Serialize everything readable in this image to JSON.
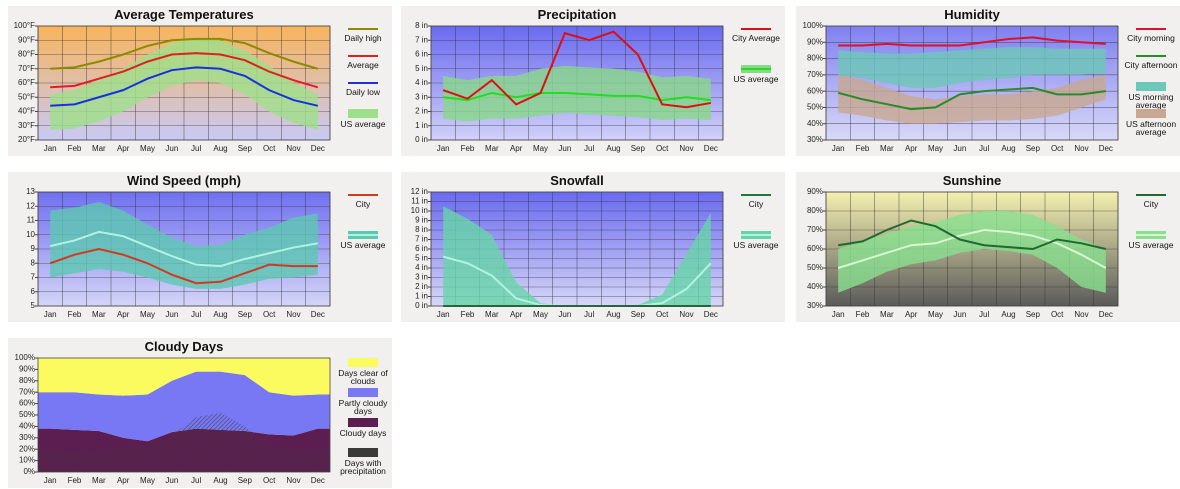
{
  "chart_data": [
    {
      "type": "line",
      "title": "Average Temperatures",
      "categories": [
        "Jan",
        "Feb",
        "Mar",
        "Apr",
        "May",
        "Jun",
        "Jul",
        "Aug",
        "Sep",
        "Oct",
        "Nov",
        "Dec"
      ],
      "ylim": [
        20,
        100
      ],
      "yticks": [
        {
          "value": 20,
          "label": "20°F"
        },
        {
          "value": 30,
          "label": "30°F"
        },
        {
          "value": 40,
          "label": "40°F"
        },
        {
          "value": 50,
          "label": "50°F"
        },
        {
          "value": 60,
          "label": "60°F"
        },
        {
          "value": 70,
          "label": "70°F"
        },
        {
          "value": 80,
          "label": "80°F"
        },
        {
          "value": 90,
          "label": "90°F"
        },
        {
          "value": 100,
          "label": "100°F"
        }
      ],
      "grid": true,
      "background": [
        "#f8b45c",
        "#c9c9f5"
      ],
      "series": [
        {
          "name": "Daily high",
          "color": "#8b8b00",
          "values": [
            70,
            71,
            75,
            80,
            86,
            90,
            91,
            91,
            88,
            81,
            75,
            70
          ]
        },
        {
          "name": "Average",
          "color": "#e02020",
          "values": [
            57,
            58,
            63,
            68,
            75,
            80,
            81,
            80,
            76,
            68,
            62,
            57
          ]
        },
        {
          "name": "Daily low",
          "color": "#1a30e0",
          "values": [
            44,
            45,
            50,
            55,
            63,
            69,
            71,
            70,
            65,
            55,
            48,
            44
          ]
        },
        {
          "name": "US average",
          "color": "#9de08a",
          "lower": [
            27,
            28,
            33,
            40,
            50,
            58,
            62,
            60,
            52,
            40,
            32,
            27
          ],
          "upper": [
            52,
            55,
            62,
            70,
            80,
            88,
            92,
            90,
            83,
            72,
            60,
            52
          ]
        }
      ]
    },
    {
      "type": "line",
      "title": "Precipitation",
      "categories": [
        "Jan",
        "Feb",
        "Mar",
        "Apr",
        "May",
        "Jun",
        "Jul",
        "Aug",
        "Sep",
        "Oct",
        "Nov",
        "Dec"
      ],
      "ylim": [
        0,
        8
      ],
      "yticks": [
        {
          "value": 0,
          "label": "0 in"
        },
        {
          "value": 1,
          "label": "1 in"
        },
        {
          "value": 2,
          "label": "2 in"
        },
        {
          "value": 3,
          "label": "3 in"
        },
        {
          "value": 4,
          "label": "4 in"
        },
        {
          "value": 5,
          "label": "5 in"
        },
        {
          "value": 6,
          "label": "6 in"
        },
        {
          "value": 7,
          "label": "7 in"
        },
        {
          "value": 8,
          "label": "8 in"
        }
      ],
      "grid": true,
      "background": [
        "#6a6af0",
        "#d0d0f8"
      ],
      "series": [
        {
          "name": "US average",
          "color": "#88d888",
          "lower": [
            1.5,
            1.3,
            1.5,
            1.5,
            1.7,
            1.9,
            1.8,
            1.7,
            1.6,
            1.4,
            1.5,
            1.4
          ],
          "upper": [
            4.5,
            4.2,
            4.5,
            4.5,
            5.0,
            5.2,
            5.1,
            5.0,
            4.8,
            4.4,
            4.5,
            4.3
          ],
          "values": [
            3.0,
            2.8,
            3.3,
            3.0,
            3.3,
            3.3,
            3.2,
            3.1,
            3.1,
            2.8,
            3.0,
            2.8
          ],
          "line_color": "#22dd22"
        },
        {
          "name": "City Average",
          "color": "#dd1010",
          "values": [
            3.5,
            2.9,
            4.2,
            2.5,
            3.3,
            7.5,
            7.0,
            7.6,
            6.0,
            2.5,
            2.3,
            2.6
          ]
        }
      ],
      "legend_order": [
        1,
        0
      ]
    },
    {
      "type": "line",
      "title": "Humidity",
      "categories": [
        "Jan",
        "Feb",
        "Mar",
        "Apr",
        "May",
        "Jun",
        "Jul",
        "Aug",
        "Sep",
        "Oct",
        "Nov",
        "Dec"
      ],
      "ylim": [
        30,
        100
      ],
      "yticks": [
        {
          "value": 30,
          "label": "30%"
        },
        {
          "value": 40,
          "label": "40%"
        },
        {
          "value": 50,
          "label": "50%"
        },
        {
          "value": 60,
          "label": "60%"
        },
        {
          "value": 70,
          "label": "70%"
        },
        {
          "value": 80,
          "label": "80%"
        },
        {
          "value": 90,
          "label": "90%"
        },
        {
          "value": 100,
          "label": "100%"
        }
      ],
      "grid": true,
      "background": [
        "#8080f0",
        "#d8d8f8"
      ],
      "series": [
        {
          "name": "City morning",
          "color": "#dd1030",
          "values": [
            88,
            88,
            89,
            88,
            88,
            88,
            90,
            92,
            93,
            91,
            90,
            89
          ]
        },
        {
          "name": "City afternoon",
          "color": "#2a8a2a",
          "values": [
            59,
            55,
            52,
            49,
            50,
            58,
            60,
            61,
            62,
            58,
            58,
            60
          ]
        },
        {
          "name": "US morning average",
          "color": "#6cc8b8",
          "lower": [
            70,
            68,
            65,
            62,
            62,
            65,
            67,
            68,
            70,
            70,
            70,
            71
          ],
          "upper": [
            85,
            84,
            83,
            83,
            84,
            85,
            86,
            87,
            87,
            86,
            86,
            86
          ]
        },
        {
          "name": "US afternoon average",
          "color": "#c8a890",
          "lower": [
            47,
            45,
            42,
            40,
            40,
            41,
            42,
            42,
            43,
            45,
            50,
            55
          ],
          "upper": [
            70,
            67,
            62,
            57,
            55,
            57,
            58,
            58,
            60,
            62,
            67,
            70
          ]
        }
      ]
    },
    {
      "type": "line",
      "title": "Wind Speed (mph)",
      "categories": [
        "Jan",
        "Feb",
        "Mar",
        "Apr",
        "May",
        "Jun",
        "Jul",
        "Aug",
        "Sep",
        "Oct",
        "Nov",
        "Dec"
      ],
      "ylim": [
        5,
        13
      ],
      "yticks": [
        5,
        6,
        7,
        8,
        9,
        10,
        11,
        12,
        13
      ],
      "grid": true,
      "background": [
        "#7070f0",
        "#d4d4f8"
      ],
      "series": [
        {
          "name": "US average",
          "color": "#5cc8b0",
          "lower": [
            7.0,
            7.3,
            7.6,
            7.4,
            7.0,
            6.5,
            6.2,
            6.2,
            6.5,
            6.9,
            7.0,
            7.2
          ],
          "upper": [
            11.7,
            11.9,
            12.3,
            11.7,
            10.7,
            9.8,
            9.2,
            9.3,
            10.0,
            10.5,
            11.2,
            11.5
          ],
          "values": [
            9.2,
            9.6,
            10.2,
            9.9,
            9.2,
            8.5,
            7.9,
            7.8,
            8.3,
            8.7,
            9.1,
            9.4
          ],
          "line_color": "#b0f4e0"
        },
        {
          "name": "City",
          "color": "#d03a20",
          "values": [
            8.0,
            8.6,
            9.0,
            8.6,
            8.0,
            7.2,
            6.6,
            6.7,
            7.3,
            7.9,
            7.8,
            7.8
          ]
        }
      ],
      "legend_order": [
        1,
        0
      ]
    },
    {
      "type": "line",
      "title": "Snowfall",
      "categories": [
        "Jan",
        "Feb",
        "Mar",
        "Apr",
        "May",
        "Jun",
        "Jul",
        "Aug",
        "Sep",
        "Oct",
        "Nov",
        "Dec"
      ],
      "ylim": [
        0,
        12
      ],
      "yticks": [
        {
          "value": 0,
          "label": "0 in"
        },
        {
          "value": 1,
          "label": "1 in"
        },
        {
          "value": 2,
          "label": "2 in"
        },
        {
          "value": 3,
          "label": "3 in"
        },
        {
          "value": 4,
          "label": "4 in"
        },
        {
          "value": 5,
          "label": "5 in"
        },
        {
          "value": 6,
          "label": "6 in"
        },
        {
          "value": 7,
          "label": "7 in"
        },
        {
          "value": 8,
          "label": "8 in"
        },
        {
          "value": 9,
          "label": "9 in"
        },
        {
          "value": 10,
          "label": "10 in"
        },
        {
          "value": 11,
          "label": "11 in"
        },
        {
          "value": 12,
          "label": "12 in"
        }
      ],
      "grid": true,
      "background": [
        "#6a6af0",
        "#d6d6f8"
      ],
      "series": [
        {
          "name": "US average",
          "color": "#66d4a8",
          "lower": [
            0,
            0,
            0,
            0,
            0,
            0,
            0,
            0,
            0,
            0,
            0,
            0
          ],
          "upper": [
            10.5,
            9.2,
            7.5,
            2.5,
            0.3,
            0,
            0,
            0,
            0.1,
            1.2,
            5.5,
            9.8
          ],
          "values": [
            5.2,
            4.5,
            3.2,
            0.8,
            0.1,
            0,
            0,
            0,
            0,
            0.3,
            1.8,
            4.5
          ],
          "line_color": "#b0f4e0"
        },
        {
          "name": "City",
          "color": "#1a7a3a",
          "values": [
            0,
            0,
            0,
            0,
            0,
            0,
            0,
            0,
            0,
            0,
            0,
            0
          ]
        }
      ],
      "legend_order": [
        1,
        0
      ]
    },
    {
      "type": "line",
      "title": "Sunshine",
      "categories": [
        "Jan",
        "Feb",
        "Mar",
        "Apr",
        "May",
        "Jun",
        "Jul",
        "Aug",
        "Sep",
        "Oct",
        "Nov",
        "Dec"
      ],
      "ylim": [
        30,
        90
      ],
      "yticks": [
        {
          "value": 30,
          "label": "30%"
        },
        {
          "value": 40,
          "label": "40%"
        },
        {
          "value": 50,
          "label": "50%"
        },
        {
          "value": 60,
          "label": "60%"
        },
        {
          "value": 70,
          "label": "70%"
        },
        {
          "value": 80,
          "label": "80%"
        },
        {
          "value": 90,
          "label": "90%"
        }
      ],
      "grid": true,
      "background": [
        "#f4f0b0",
        "#5a5a5a"
      ],
      "series": [
        {
          "name": "US average",
          "color": "#88e090",
          "lower": [
            37,
            42,
            48,
            52,
            54,
            58,
            60,
            59,
            57,
            50,
            40,
            37
          ],
          "upper": [
            60,
            64,
            68,
            72,
            74,
            78,
            80,
            80,
            78,
            72,
            65,
            60
          ],
          "values": [
            50,
            54,
            58,
            62,
            63,
            67,
            70,
            69,
            67,
            63,
            57,
            50
          ],
          "line_color": "#d8f8d0"
        },
        {
          "name": "City",
          "color": "#1f6a30",
          "values": [
            62,
            64,
            70,
            75,
            72,
            65,
            62,
            61,
            60,
            65,
            63,
            60
          ]
        }
      ],
      "legend_order": [
        1,
        0
      ]
    },
    {
      "type": "area",
      "title": "Cloudy Days",
      "categories": [
        "Jan",
        "Feb",
        "Mar",
        "Apr",
        "May",
        "Jun",
        "Jul",
        "Aug",
        "Sep",
        "Oct",
        "Nov",
        "Dec"
      ],
      "ylim": [
        0,
        100
      ],
      "yticks": [
        {
          "value": 0,
          "label": "0%"
        },
        {
          "value": 10,
          "label": "10%"
        },
        {
          "value": 20,
          "label": "20%"
        },
        {
          "value": 30,
          "label": "30%"
        },
        {
          "value": 40,
          "label": "40%"
        },
        {
          "value": 50,
          "label": "50%"
        },
        {
          "value": 60,
          "label": "60%"
        },
        {
          "value": 70,
          "label": "70%"
        },
        {
          "value": 80,
          "label": "80%"
        },
        {
          "value": 90,
          "label": "90%"
        },
        {
          "value": 100,
          "label": "100%"
        }
      ],
      "grid": false,
      "series": [
        {
          "name": "Cloudy days",
          "color": "#5c1e50",
          "values": [
            38,
            37,
            36,
            30,
            27,
            35,
            38,
            37,
            36,
            33,
            32,
            38
          ]
        },
        {
          "name": "Partly cloudy days",
          "color": "#7878f4",
          "values": [
            32,
            33,
            32,
            37,
            41,
            45,
            50,
            51,
            49,
            37,
            35,
            30
          ]
        },
        {
          "name": "Days clear of clouds",
          "color": "#fbfb60",
          "values": [
            30,
            30,
            32,
            33,
            32,
            20,
            12,
            12,
            15,
            30,
            33,
            32
          ]
        },
        {
          "name": "Days with precipitation",
          "color": "#3a3a3a",
          "overlay": true,
          "values": [
            20,
            18,
            20,
            22,
            24,
            32,
            48,
            52,
            40,
            22,
            20,
            20
          ]
        }
      ],
      "legend_order": [
        2,
        1,
        0,
        3
      ]
    }
  ]
}
